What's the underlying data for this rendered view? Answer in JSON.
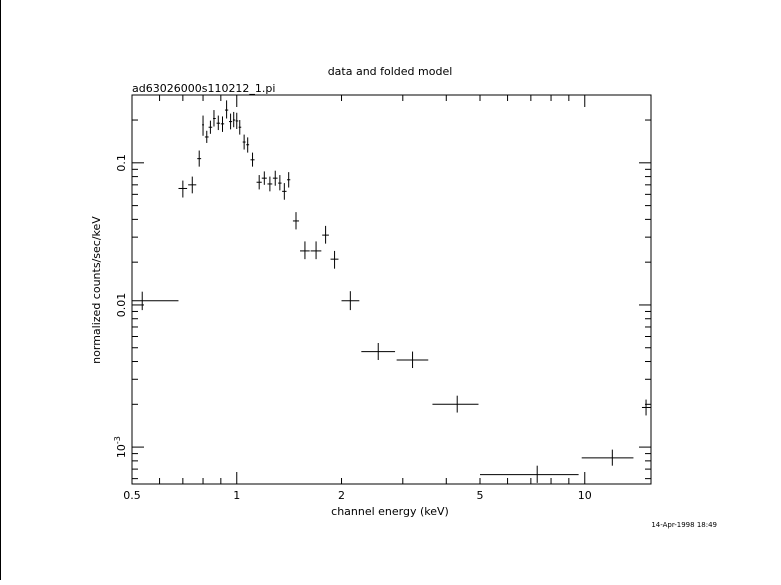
{
  "chart_data": {
    "type": "scatter",
    "title": "data and folded model",
    "subtitle": "ad63026000s110212_1.pi",
    "xlabel": "channel energy (keV)",
    "ylabel": "normalized counts/sec/keV",
    "timestamp": "14-Apr-1998 18:49",
    "x_scale": "log",
    "y_scale": "log",
    "xlim": [
      0.5,
      15.5
    ],
    "ylim": [
      0.00055,
      0.3
    ],
    "grid": false,
    "x_ticks": [
      {
        "value": 0.5,
        "label": "0.5"
      },
      {
        "value": 1,
        "label": "1"
      },
      {
        "value": 2,
        "label": "2"
      },
      {
        "value": 5,
        "label": "5"
      },
      {
        "value": 10,
        "label": "10"
      }
    ],
    "y_ticks": [
      {
        "value": 0.1,
        "label": "0.1"
      },
      {
        "value": 0.01,
        "label": "0.01"
      },
      {
        "value": 0.001,
        "label": "10^-3"
      }
    ],
    "series": [
      {
        "points": [
          {
            "x": 0.535,
            "xlo": 0.5,
            "xhi": 0.68,
            "y": 0.0107,
            "ylo": 0.0092,
            "yhi": 0.0124
          },
          {
            "x": 0.7,
            "xlo": 0.68,
            "xhi": 0.72,
            "y": 0.066,
            "ylo": 0.057,
            "yhi": 0.075
          },
          {
            "x": 0.745,
            "xlo": 0.725,
            "xhi": 0.765,
            "y": 0.07,
            "ylo": 0.061,
            "yhi": 0.08
          },
          {
            "x": 0.78,
            "xlo": 0.77,
            "xhi": 0.79,
            "y": 0.107,
            "ylo": 0.094,
            "yhi": 0.122
          },
          {
            "x": 0.8,
            "xlo": 0.795,
            "xhi": 0.805,
            "y": 0.185,
            "ylo": 0.155,
            "yhi": 0.215
          },
          {
            "x": 0.82,
            "xlo": 0.81,
            "xhi": 0.83,
            "y": 0.152,
            "ylo": 0.138,
            "yhi": 0.168
          },
          {
            "x": 0.84,
            "xlo": 0.83,
            "xhi": 0.85,
            "y": 0.178,
            "ylo": 0.16,
            "yhi": 0.198
          },
          {
            "x": 0.86,
            "xlo": 0.855,
            "xhi": 0.87,
            "y": 0.205,
            "ylo": 0.18,
            "yhi": 0.235
          },
          {
            "x": 0.885,
            "xlo": 0.875,
            "xhi": 0.895,
            "y": 0.19,
            "ylo": 0.17,
            "yhi": 0.215
          },
          {
            "x": 0.91,
            "xlo": 0.9,
            "xhi": 0.92,
            "y": 0.188,
            "ylo": 0.165,
            "yhi": 0.212
          },
          {
            "x": 0.935,
            "xlo": 0.925,
            "xhi": 0.945,
            "y": 0.235,
            "ylo": 0.205,
            "yhi": 0.275
          },
          {
            "x": 0.96,
            "xlo": 0.95,
            "xhi": 0.97,
            "y": 0.195,
            "ylo": 0.172,
            "yhi": 0.222
          },
          {
            "x": 0.98,
            "xlo": 0.975,
            "xhi": 0.99,
            "y": 0.2,
            "ylo": 0.178,
            "yhi": 0.228
          },
          {
            "x": 1.0,
            "xlo": 0.993,
            "xhi": 1.01,
            "y": 0.197,
            "ylo": 0.173,
            "yhi": 0.225
          },
          {
            "x": 1.02,
            "xlo": 1.013,
            "xhi": 1.03,
            "y": 0.178,
            "ylo": 0.158,
            "yhi": 0.2
          },
          {
            "x": 1.05,
            "xlo": 1.04,
            "xhi": 1.06,
            "y": 0.14,
            "ylo": 0.124,
            "yhi": 0.158
          },
          {
            "x": 1.075,
            "xlo": 1.065,
            "xhi": 1.085,
            "y": 0.134,
            "ylo": 0.118,
            "yhi": 0.151
          },
          {
            "x": 1.11,
            "xlo": 1.095,
            "xhi": 1.125,
            "y": 0.105,
            "ylo": 0.094,
            "yhi": 0.118
          },
          {
            "x": 1.16,
            "xlo": 1.14,
            "xhi": 1.18,
            "y": 0.073,
            "ylo": 0.065,
            "yhi": 0.082
          },
          {
            "x": 1.2,
            "xlo": 1.18,
            "xhi": 1.22,
            "y": 0.078,
            "ylo": 0.07,
            "yhi": 0.087
          },
          {
            "x": 1.245,
            "xlo": 1.225,
            "xhi": 1.265,
            "y": 0.071,
            "ylo": 0.063,
            "yhi": 0.08
          },
          {
            "x": 1.29,
            "xlo": 1.27,
            "xhi": 1.31,
            "y": 0.078,
            "ylo": 0.069,
            "yhi": 0.088
          },
          {
            "x": 1.33,
            "xlo": 1.315,
            "xhi": 1.345,
            "y": 0.072,
            "ylo": 0.064,
            "yhi": 0.082
          },
          {
            "x": 1.37,
            "xlo": 1.35,
            "xhi": 1.39,
            "y": 0.063,
            "ylo": 0.055,
            "yhi": 0.072
          },
          {
            "x": 1.41,
            "xlo": 1.395,
            "xhi": 1.425,
            "y": 0.076,
            "ylo": 0.067,
            "yhi": 0.086
          },
          {
            "x": 1.48,
            "xlo": 1.45,
            "xhi": 1.51,
            "y": 0.039,
            "ylo": 0.034,
            "yhi": 0.045
          },
          {
            "x": 1.57,
            "xlo": 1.52,
            "xhi": 1.62,
            "y": 0.024,
            "ylo": 0.021,
            "yhi": 0.028
          },
          {
            "x": 1.69,
            "xlo": 1.63,
            "xhi": 1.75,
            "y": 0.024,
            "ylo": 0.021,
            "yhi": 0.028
          },
          {
            "x": 1.8,
            "xlo": 1.76,
            "xhi": 1.84,
            "y": 0.031,
            "ylo": 0.027,
            "yhi": 0.036
          },
          {
            "x": 1.91,
            "xlo": 1.86,
            "xhi": 1.96,
            "y": 0.021,
            "ylo": 0.018,
            "yhi": 0.024
          },
          {
            "x": 2.12,
            "xlo": 2.0,
            "xhi": 2.25,
            "y": 0.0107,
            "ylo": 0.0092,
            "yhi": 0.0125
          },
          {
            "x": 2.55,
            "xlo": 2.28,
            "xhi": 2.85,
            "y": 0.0047,
            "ylo": 0.0041,
            "yhi": 0.0054
          },
          {
            "x": 3.2,
            "xlo": 2.88,
            "xhi": 3.55,
            "y": 0.0041,
            "ylo": 0.0036,
            "yhi": 0.0047
          },
          {
            "x": 4.3,
            "xlo": 3.65,
            "xhi": 4.95,
            "y": 0.002,
            "ylo": 0.00175,
            "yhi": 0.0023
          },
          {
            "x": 7.3,
            "xlo": 5.0,
            "xhi": 9.6,
            "y": 0.00064,
            "ylo": 0.00056,
            "yhi": 0.00074
          },
          {
            "x": 12.0,
            "xlo": 9.8,
            "xhi": 13.8,
            "y": 0.00084,
            "ylo": 0.00074,
            "yhi": 0.00096
          },
          {
            "x": 15.0,
            "xlo": 14.6,
            "xhi": 15.5,
            "y": 0.0019,
            "ylo": 0.00167,
            "yhi": 0.00216
          }
        ]
      }
    ]
  }
}
